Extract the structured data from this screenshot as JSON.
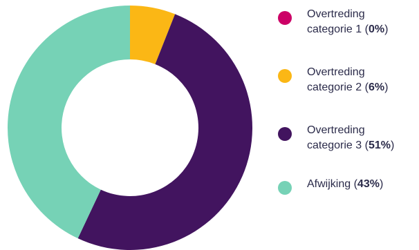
{
  "chart_data": {
    "type": "pie",
    "donut": true,
    "legend_position": "right",
    "series": [
      {
        "line1": "Overtreding",
        "line2": "categorie 1",
        "value": 0,
        "color": "#cc0066"
      },
      {
        "line1": "Overtreding",
        "line2": "categorie 2",
        "value": 6,
        "color": "#fbb715"
      },
      {
        "line1": "Overtreding",
        "line2": "categorie 3",
        "value": 51,
        "color": "#42145f"
      },
      {
        "line1": "Afwijking",
        "line2": "",
        "value": 43,
        "color": "#76d2b6"
      }
    ],
    "labels": [
      "0%",
      "6%",
      "51%",
      "43%"
    ]
  }
}
